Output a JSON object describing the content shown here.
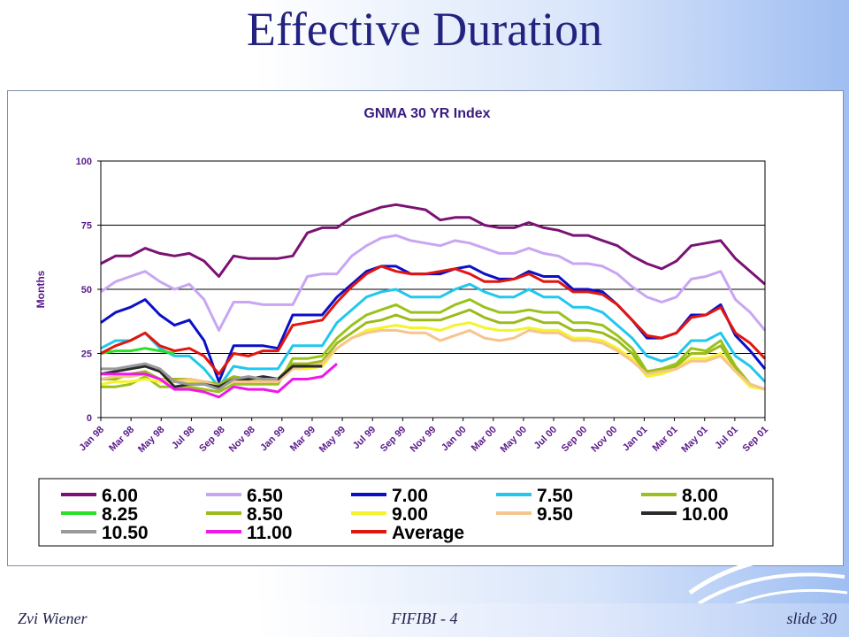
{
  "slide": {
    "title": "Effective Duration",
    "footer_left": "Zvi Wiener",
    "footer_center": "FIFIBI - 4",
    "footer_right": "slide 30"
  },
  "chart_data": {
    "type": "line",
    "title": "GNMA 30 YR Index",
    "ylabel": "Months",
    "xlabel": "",
    "ylim": [
      0,
      100
    ],
    "yticks": [
      0,
      25,
      50,
      75,
      100
    ],
    "grid": true,
    "legend_position": "bottom",
    "x_tick_labels": [
      "Jan 98",
      "Mar 98",
      "May 98",
      "Jul 98",
      "Sep 98",
      "Nov 98",
      "Jan 99",
      "Mar 99",
      "May 99",
      "Jul 99",
      "Sep 99",
      "Nov 99",
      "Jan 00",
      "Mar 00",
      "May 00",
      "Jul 00",
      "Sep 00",
      "Nov 00",
      "Jan 01",
      "Mar 01",
      "May 01",
      "Jul 01",
      "Sep 01"
    ],
    "series": [
      {
        "name": "6.00",
        "color": "#7a1273",
        "values": [
          60,
          63,
          63,
          66,
          64,
          63,
          64,
          61,
          55,
          63,
          62,
          62,
          62,
          63,
          72,
          74,
          74,
          78,
          80,
          82,
          83,
          82,
          81,
          77,
          78,
          78,
          75,
          74,
          74,
          76,
          74,
          73,
          71,
          71,
          69,
          67,
          63,
          60,
          58,
          61,
          67,
          68,
          69,
          62,
          57,
          52
        ]
      },
      {
        "name": "6.50",
        "color": "#c8a6f2",
        "values": [
          49,
          53,
          55,
          57,
          53,
          50,
          52,
          46,
          34,
          45,
          45,
          44,
          44,
          44,
          55,
          56,
          56,
          63,
          67,
          70,
          71,
          69,
          68,
          67,
          69,
          68,
          66,
          64,
          64,
          66,
          64,
          63,
          60,
          60,
          59,
          56,
          51,
          47,
          45,
          47,
          54,
          55,
          57,
          46,
          41,
          34
        ]
      },
      {
        "name": "7.00",
        "color": "#0b10c8",
        "values": [
          37,
          41,
          43,
          46,
          40,
          36,
          38,
          30,
          14,
          28,
          28,
          28,
          27,
          40,
          40,
          40,
          47,
          52,
          57,
          59,
          59,
          56,
          56,
          56,
          58,
          59,
          56,
          54,
          54,
          57,
          55,
          55,
          50,
          50,
          49,
          44,
          38,
          31,
          31,
          33,
          40,
          40,
          44,
          32,
          26,
          19
        ]
      },
      {
        "name": "7.50",
        "color": "#21c7ec",
        "values": [
          27,
          30,
          30,
          33,
          27,
          24,
          24,
          19,
          12,
          20,
          19,
          19,
          19,
          28,
          28,
          28,
          37,
          42,
          47,
          49,
          50,
          47,
          47,
          47,
          50,
          52,
          49,
          47,
          47,
          50,
          47,
          47,
          43,
          43,
          41,
          36,
          31,
          24,
          22,
          24,
          30,
          30,
          33,
          24,
          20,
          14
        ]
      },
      {
        "name": "8.00",
        "color": "#99c31c",
        "values": [
          12,
          12,
          13,
          16,
          12,
          12,
          12,
          11,
          10,
          13,
          13,
          13,
          13,
          23,
          23,
          24,
          31,
          36,
          40,
          42,
          44,
          41,
          41,
          41,
          44,
          46,
          43,
          41,
          41,
          42,
          41,
          41,
          37,
          37,
          36,
          32,
          27,
          18,
          19,
          21,
          27,
          26,
          30,
          20,
          13,
          11
        ]
      },
      {
        "name": "8.25",
        "color": "#28e127",
        "values": [
          25,
          26,
          26,
          27,
          26,
          25,
          null,
          null,
          null,
          null,
          null,
          null,
          null,
          null,
          null,
          null,
          null,
          null,
          null,
          null,
          null,
          null,
          null,
          null,
          null,
          null,
          null,
          null,
          null,
          null,
          null,
          null,
          null,
          null,
          null,
          null,
          null,
          null,
          null,
          null,
          null,
          null,
          null,
          null,
          null,
          null
        ]
      },
      {
        "name": "8.50",
        "color": "#9dba1c",
        "values": [
          15,
          15,
          17,
          18,
          15,
          15,
          15,
          14,
          13,
          16,
          15,
          15,
          15,
          21,
          21,
          22,
          29,
          33,
          37,
          38,
          40,
          38,
          38,
          38,
          40,
          42,
          39,
          37,
          37,
          39,
          37,
          37,
          34,
          34,
          33,
          30,
          25,
          17,
          18,
          20,
          25,
          25,
          28,
          19,
          13,
          11
        ]
      },
      {
        "name": "9.00",
        "color": "#f4f42c",
        "values": [
          13,
          14,
          14,
          15,
          14,
          14,
          14,
          13,
          12,
          14,
          14,
          14,
          14,
          19,
          19,
          20,
          27,
          31,
          34,
          35,
          36,
          35,
          35,
          34,
          36,
          37,
          35,
          34,
          34,
          35,
          34,
          34,
          31,
          31,
          30,
          27,
          23,
          16,
          17,
          19,
          23,
          23,
          25,
          18,
          12,
          11
        ]
      },
      {
        "name": "9.50",
        "color": "#f7c48d",
        "values": [
          15,
          16,
          16,
          17,
          15,
          14,
          15,
          14,
          12,
          14,
          14,
          14,
          14,
          19,
          20,
          21,
          27,
          31,
          33,
          34,
          34,
          33,
          33,
          30,
          32,
          34,
          31,
          30,
          31,
          34,
          33,
          33,
          30,
          30,
          29,
          26,
          22,
          17,
          18,
          19,
          22,
          22,
          24,
          18,
          13,
          11
        ]
      },
      {
        "name": "10.00",
        "color": "#2a2a2a",
        "values": [
          17,
          18,
          19,
          20,
          18,
          12,
          13,
          13,
          12,
          15,
          15,
          16,
          15,
          20,
          20,
          20,
          null,
          null,
          null,
          null,
          null,
          null,
          null,
          null,
          null,
          null,
          null,
          null,
          null,
          null,
          null,
          null,
          null,
          null,
          null,
          null,
          null,
          null,
          null,
          null,
          null,
          null,
          null,
          null,
          null,
          null
        ]
      },
      {
        "name": "10.50",
        "color": "#9a9a9a",
        "values": [
          19,
          19,
          20,
          21,
          19,
          14,
          13,
          13,
          11,
          15,
          16,
          15,
          15,
          null,
          null,
          null,
          null,
          null,
          null,
          null,
          null,
          null,
          null,
          null,
          null,
          null,
          null,
          null,
          null,
          null,
          null,
          null,
          null,
          null,
          null,
          null,
          null,
          null,
          null,
          null,
          null,
          null,
          null,
          null,
          null,
          null
        ]
      },
      {
        "name": "11.00",
        "color": "#f018e8",
        "values": [
          17,
          17,
          17,
          17,
          15,
          11,
          11,
          10,
          8,
          12,
          11,
          11,
          10,
          15,
          15,
          16,
          21,
          null,
          null,
          null,
          null,
          null,
          null,
          null,
          null,
          null,
          null,
          null,
          null,
          null,
          null,
          null,
          null,
          null,
          null,
          null,
          null,
          null,
          null,
          null,
          null,
          null,
          null,
          null,
          null,
          null
        ]
      },
      {
        "name": "Average",
        "color": "#e3150f",
        "values": [
          25,
          28,
          30,
          33,
          28,
          26,
          27,
          24,
          17,
          25,
          24,
          26,
          26,
          36,
          37,
          38,
          45,
          51,
          56,
          59,
          57,
          56,
          56,
          57,
          58,
          56,
          53,
          53,
          54,
          56,
          53,
          53,
          49,
          49,
          48,
          44,
          38,
          32,
          31,
          33,
          39,
          40,
          43,
          33,
          29,
          23
        ]
      }
    ]
  }
}
